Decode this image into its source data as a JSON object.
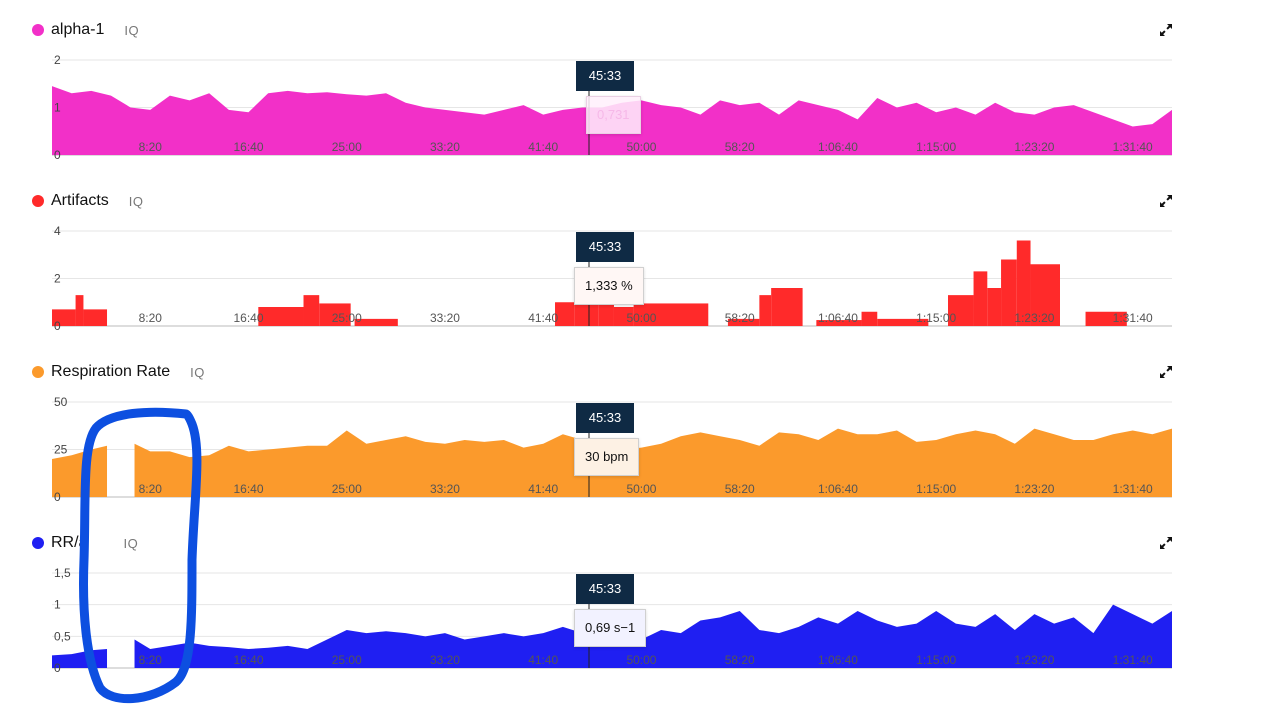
{
  "colors": {
    "alpha": "#f230c8",
    "artifacts": "#ff2a2a",
    "respiration": "#fb9a2c",
    "rr": "#1f1ff2",
    "marker": "#0f2a44",
    "annotation": "#0d4fe0"
  },
  "common": {
    "iq_label": "IQ",
    "cursor_time": "45:33",
    "x_ticks": [
      "8:20",
      "16:40",
      "25:00",
      "33:20",
      "41:40",
      "50:00",
      "58:20",
      "1:06:40",
      "1:15:00",
      "1:23:20",
      "1:31:40"
    ]
  },
  "panels": [
    {
      "key": "alpha",
      "title": "alpha-1",
      "y_ticks": [
        "0",
        "1",
        "2"
      ],
      "tooltip": "0,731"
    },
    {
      "key": "artifacts",
      "title": "Artifacts",
      "y_ticks": [
        "0",
        "2",
        "4"
      ],
      "tooltip": "1,333 %"
    },
    {
      "key": "respiration",
      "title": "Respiration Rate",
      "y_ticks": [
        "0",
        "25",
        "50"
      ],
      "tooltip": "30 bpm"
    },
    {
      "key": "rr",
      "title": "RR/a",
      "y_ticks": [
        "0",
        "0,5",
        "1",
        "1,5"
      ],
      "tooltip": "0,69 s−1"
    }
  ],
  "chart_data": [
    {
      "type": "area",
      "title": "alpha-1",
      "x_unit": "seconds",
      "x_tick_seconds": [
        500,
        1000,
        1500,
        2000,
        2500,
        3000,
        3500,
        4000,
        4500,
        5000,
        5500
      ],
      "xlim": [
        0,
        5700
      ],
      "ylim": [
        0,
        2
      ],
      "cursor_seconds": 2733,
      "cursor_value": 0.731,
      "x": [
        0,
        100,
        200,
        300,
        400,
        500,
        600,
        700,
        800,
        900,
        1000,
        1100,
        1200,
        1300,
        1400,
        1500,
        1600,
        1700,
        1800,
        1900,
        2000,
        2100,
        2200,
        2300,
        2400,
        2500,
        2600,
        2700,
        2800,
        2900,
        3000,
        3100,
        3200,
        3300,
        3400,
        3500,
        3600,
        3700,
        3800,
        3900,
        4000,
        4100,
        4200,
        4300,
        4400,
        4500,
        4600,
        4700,
        4800,
        4900,
        5000,
        5100,
        5200,
        5300,
        5400,
        5500,
        5600,
        5700
      ],
      "y": [
        1.45,
        1.3,
        1.35,
        1.25,
        1.0,
        0.95,
        1.25,
        1.15,
        1.3,
        0.95,
        0.9,
        1.3,
        1.35,
        1.3,
        1.32,
        1.28,
        1.25,
        1.3,
        1.1,
        1.0,
        0.95,
        0.9,
        0.85,
        0.95,
        1.05,
        0.85,
        0.95,
        1.0,
        1.0,
        1.1,
        1.15,
        1.05,
        1.0,
        0.85,
        1.15,
        1.05,
        1.1,
        0.85,
        1.15,
        1.05,
        0.95,
        0.75,
        1.2,
        1.0,
        1.1,
        0.9,
        1.0,
        0.85,
        1.1,
        0.9,
        0.85,
        1.0,
        1.05,
        0.9,
        0.75,
        0.6,
        0.65,
        0.95
      ]
    },
    {
      "type": "area",
      "title": "Artifacts",
      "x_unit": "seconds",
      "x_tick_seconds": [
        500,
        1000,
        1500,
        2000,
        2500,
        3000,
        3500,
        4000,
        4500,
        5000,
        5500
      ],
      "xlim": [
        0,
        5700
      ],
      "ylim": [
        0,
        4
      ],
      "cursor_seconds": 2733,
      "cursor_value": 1.333,
      "segments": [
        {
          "x0": 0,
          "x1": 120,
          "y": 0.7
        },
        {
          "x0": 120,
          "x1": 160,
          "y": 1.3
        },
        {
          "x0": 160,
          "x1": 280,
          "y": 0.7
        },
        {
          "x0": 1050,
          "x1": 1280,
          "y": 0.8
        },
        {
          "x0": 1280,
          "x1": 1360,
          "y": 1.3
        },
        {
          "x0": 1360,
          "x1": 1520,
          "y": 0.95
        },
        {
          "x0": 1540,
          "x1": 1760,
          "y": 0.3
        },
        {
          "x0": 2560,
          "x1": 2660,
          "y": 1.0
        },
        {
          "x0": 2660,
          "x1": 2780,
          "y": 1.35
        },
        {
          "x0": 2780,
          "x1": 2860,
          "y": 0.9
        },
        {
          "x0": 2860,
          "x1": 2960,
          "y": 0.8
        },
        {
          "x0": 2960,
          "x1": 3340,
          "y": 0.95
        },
        {
          "x0": 3440,
          "x1": 3600,
          "y": 0.3
        },
        {
          "x0": 3600,
          "x1": 3660,
          "y": 1.3
        },
        {
          "x0": 3660,
          "x1": 3820,
          "y": 1.6
        },
        {
          "x0": 3890,
          "x1": 4120,
          "y": 0.25
        },
        {
          "x0": 4120,
          "x1": 4200,
          "y": 0.6
        },
        {
          "x0": 4200,
          "x1": 4460,
          "y": 0.3
        },
        {
          "x0": 4560,
          "x1": 4690,
          "y": 1.3
        },
        {
          "x0": 4690,
          "x1": 4760,
          "y": 2.3
        },
        {
          "x0": 4760,
          "x1": 4830,
          "y": 1.6
        },
        {
          "x0": 4830,
          "x1": 4910,
          "y": 2.8
        },
        {
          "x0": 4910,
          "x1": 4980,
          "y": 3.6
        },
        {
          "x0": 4980,
          "x1": 5130,
          "y": 2.6
        },
        {
          "x0": 5260,
          "x1": 5470,
          "y": 0.6
        }
      ]
    },
    {
      "type": "area",
      "title": "Respiration Rate",
      "x_unit": "seconds",
      "x_tick_seconds": [
        500,
        1000,
        1500,
        2000,
        2500,
        3000,
        3500,
        4000,
        4500,
        5000,
        5500
      ],
      "xlim": [
        0,
        5700
      ],
      "ylim": [
        0,
        50
      ],
      "cursor_seconds": 2733,
      "cursor_value": 30,
      "gaps": [
        [
          280,
          420
        ]
      ],
      "x": [
        0,
        100,
        200,
        280,
        420,
        500,
        600,
        700,
        800,
        900,
        1000,
        1100,
        1200,
        1300,
        1400,
        1500,
        1600,
        1700,
        1800,
        1900,
        2000,
        2100,
        2200,
        2300,
        2400,
        2500,
        2600,
        2700,
        2800,
        2900,
        3000,
        3100,
        3200,
        3300,
        3400,
        3500,
        3600,
        3700,
        3800,
        3900,
        4000,
        4100,
        4200,
        4300,
        4400,
        4500,
        4600,
        4700,
        4800,
        4900,
        5000,
        5100,
        5200,
        5300,
        5400,
        5500,
        5600,
        5700
      ],
      "y": [
        20,
        22,
        25,
        27,
        28,
        24,
        24,
        21,
        22,
        27,
        24,
        25,
        26,
        27,
        27,
        35,
        28,
        30,
        32,
        29,
        28,
        30,
        29,
        30,
        26,
        28,
        33,
        30,
        28,
        25,
        26,
        28,
        32,
        34,
        32,
        30,
        27,
        34,
        33,
        30,
        36,
        33,
        33,
        35,
        29,
        30,
        33,
        35,
        33,
        28,
        36,
        33,
        30,
        30,
        33,
        35,
        33,
        36
      ]
    },
    {
      "type": "area",
      "title": "RR/a",
      "x_unit": "seconds",
      "x_tick_seconds": [
        500,
        1000,
        1500,
        2000,
        2500,
        3000,
        3500,
        4000,
        4500,
        5000,
        5500
      ],
      "xlim": [
        0,
        5700
      ],
      "ylim": [
        0,
        1.5
      ],
      "cursor_seconds": 2733,
      "cursor_value": 0.69,
      "gaps": [
        [
          280,
          420
        ]
      ],
      "x": [
        0,
        100,
        200,
        280,
        420,
        500,
        600,
        700,
        800,
        900,
        1000,
        1100,
        1200,
        1300,
        1400,
        1500,
        1600,
        1700,
        1800,
        1900,
        2000,
        2100,
        2200,
        2300,
        2400,
        2500,
        2600,
        2700,
        2800,
        2900,
        3000,
        3100,
        3200,
        3300,
        3400,
        3500,
        3600,
        3700,
        3800,
        3900,
        4000,
        4100,
        4200,
        4300,
        4400,
        4500,
        4600,
        4700,
        4800,
        4900,
        5000,
        5100,
        5200,
        5300,
        5400,
        5500,
        5600,
        5700
      ],
      "y": [
        0.2,
        0.22,
        0.28,
        0.3,
        0.45,
        0.3,
        0.35,
        0.4,
        0.35,
        0.33,
        0.3,
        0.32,
        0.35,
        0.3,
        0.45,
        0.6,
        0.55,
        0.58,
        0.55,
        0.5,
        0.55,
        0.45,
        0.5,
        0.55,
        0.5,
        0.55,
        0.65,
        0.55,
        0.5,
        0.6,
        0.45,
        0.6,
        0.55,
        0.75,
        0.8,
        0.9,
        0.6,
        0.55,
        0.65,
        0.8,
        0.7,
        0.9,
        0.75,
        0.65,
        0.7,
        0.9,
        0.7,
        0.65,
        0.85,
        0.6,
        0.85,
        0.7,
        0.8,
        0.55,
        1.0,
        0.85,
        0.7,
        0.9
      ]
    }
  ]
}
